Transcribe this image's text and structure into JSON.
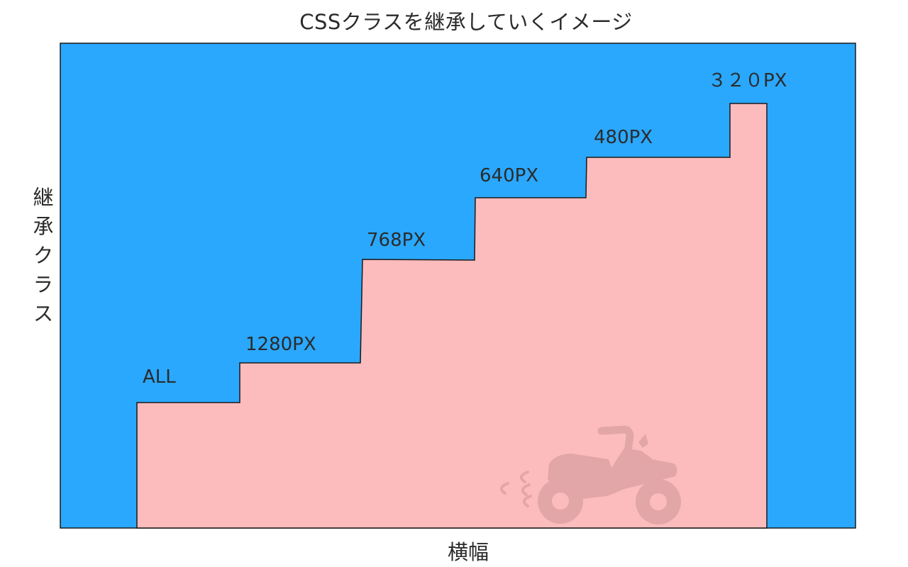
{
  "title": "CSSクラスを継承していくイメージ",
  "y_axis_label": "継承クラス",
  "x_axis_label": "横幅",
  "colors": {
    "background": "#2aa8fd",
    "stairs": "#fcbcbd",
    "outline": "#1a1a1a",
    "atv_icon": "#e3a6a8"
  },
  "steps": [
    {
      "label": "ALL"
    },
    {
      "label": "1280PX"
    },
    {
      "label": "768PX"
    },
    {
      "label": "640PX"
    },
    {
      "label": "480PX"
    },
    {
      "label": "３２０PX"
    }
  ],
  "icon": "atv-quad-bike-icon"
}
